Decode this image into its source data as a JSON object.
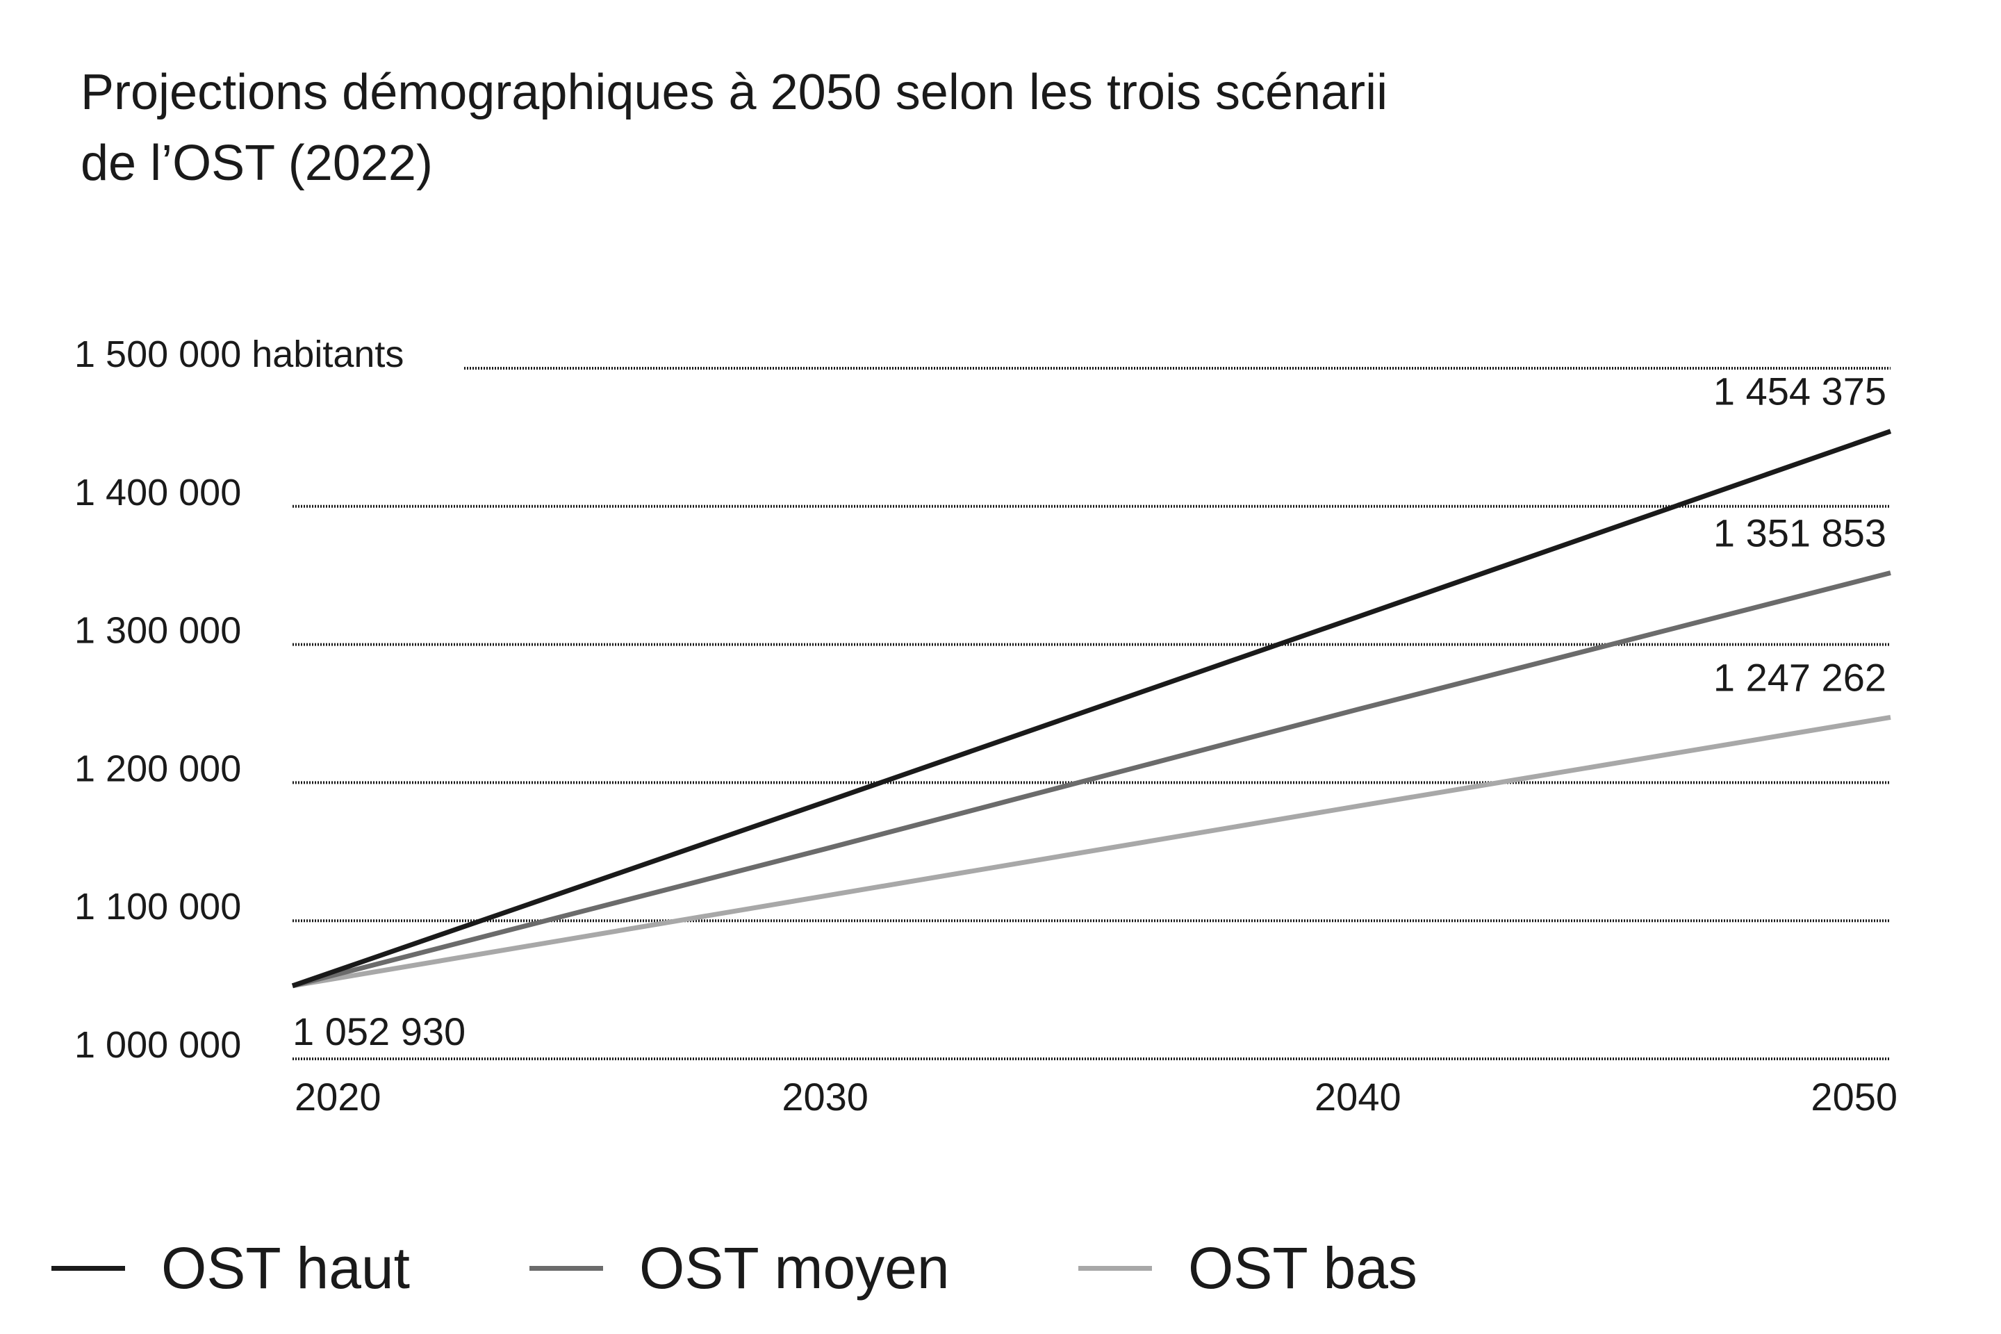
{
  "title_lines": [
    "Projections démographiques à 2050 selon les trois scénarii",
    "de l’OST (2022)"
  ],
  "chart_data": {
    "type": "line",
    "title": "Projections démographiques à 2050 selon les trois scénarii de l’OST (2022)",
    "x": [
      2020,
      2030,
      2040,
      2050
    ],
    "x_tick_labels": [
      "2020",
      "2030",
      "2040",
      "2050"
    ],
    "xlim": [
      2020,
      2050
    ],
    "ylim": [
      1000000,
      1500000
    ],
    "y_ticks": [
      1000000,
      1100000,
      1200000,
      1300000,
      1400000,
      1500000
    ],
    "y_tick_labels": [
      "1 000 000",
      "1 100 000",
      "1 200 000",
      "1 300 000",
      "1 400 000",
      "1 500 000 habitants"
    ],
    "grid": "horizontal dotted",
    "legend_position": "bottom",
    "series": [
      {
        "name": "OST haut",
        "color": "#1a1a1a",
        "values": [
          1052930,
          1186000,
          1320000,
          1454375
        ]
      },
      {
        "name": "OST moyen",
        "color": "#6b6b6b",
        "values": [
          1052930,
          1152000,
          1253000,
          1351853
        ]
      },
      {
        "name": "OST bas",
        "color": "#a8a8a8",
        "values": [
          1052930,
          1118000,
          1183000,
          1247262
        ]
      }
    ],
    "annotations": [
      {
        "text": "1 052 930",
        "x": 2020,
        "y": 1052930
      },
      {
        "text": "1 454 375",
        "x": 2050,
        "y": 1454375
      },
      {
        "text": "1 351 853",
        "x": 2050,
        "y": 1351853
      },
      {
        "text": "1 247 262",
        "x": 2050,
        "y": 1247262
      }
    ]
  }
}
